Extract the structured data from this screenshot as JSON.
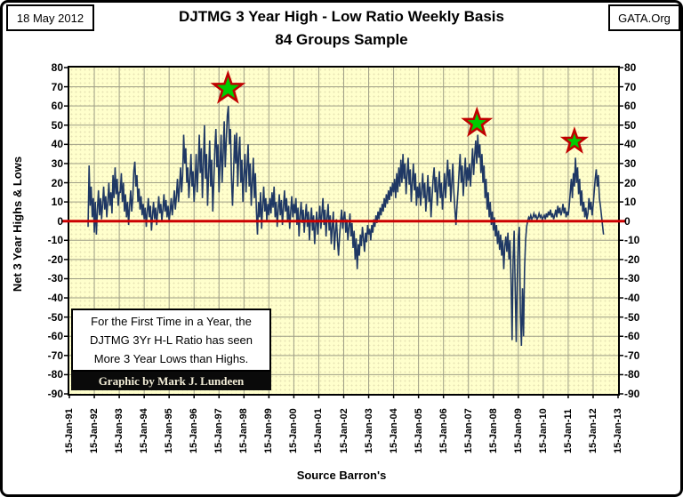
{
  "header": {
    "date": "18 May 2012",
    "org": "GATA.Org",
    "title_line1": "DJTMG 3 Year High - Low Ratio Weekly Basis",
    "title_line2": "84 Groups Sample"
  },
  "annotation": {
    "lines": [
      "For the First Time in a Year, the",
      "DJTMG 3Yr H-L Ratio has seen",
      "More 3 Year Lows than Highs."
    ]
  },
  "credit": "Graphic by Mark J. Lundeen",
  "source": "Source Barron's",
  "colors": {
    "plot_bg": "#FFFFCC",
    "grid": "#9e9e86",
    "series": "#1F3864",
    "zero_line": "#CC0000",
    "star_fill": "#00CC00",
    "star_stroke": "#C00000"
  },
  "chart_data": {
    "type": "line",
    "title": "DJTMG 3 Year High - Low Ratio Weekly Basis",
    "subtitle": "84 Groups Sample",
    "ylabel": "Net 3 Year Highs & Lows",
    "xlabel": "",
    "ylim": [
      -90,
      80
    ],
    "ytick_step": 10,
    "xlim": [
      1991,
      2013
    ],
    "grid": true,
    "legend": "none",
    "xtick_labels": [
      "15-Jan-91",
      "15-Jan-92",
      "15-Jan-93",
      "15-Jan-94",
      "15-Jan-95",
      "15-Jan-96",
      "15-Jan-97",
      "15-Jan-98",
      "15-Jan-99",
      "15-Jan-00",
      "15-Jan-01",
      "15-Jan-02",
      "15-Jan-03",
      "15-Jan-04",
      "15-Jan-05",
      "15-Jan-06",
      "15-Jan-07",
      "15-Jan-08",
      "15-Jan-09",
      "15-Jan-10",
      "15-Jan-11",
      "15-Jan-12",
      "15-Jan-13"
    ],
    "markers": [
      {
        "type": "star",
        "t": 1997.36,
        "value": 69,
        "size": 17
      },
      {
        "type": "star",
        "t": 2007.34,
        "value": 51,
        "size": 15
      },
      {
        "type": "star",
        "t": 2011.25,
        "value": 41.5,
        "size": 13
      }
    ],
    "series": [
      {
        "name": "Net 3 Year Highs & Lows (weekly)",
        "color": "#1F3864",
        "t0": 1991.75,
        "dt_years": 0.0416667,
        "values": [
          -3,
          29,
          8,
          18,
          2,
          12,
          -6,
          10,
          -7,
          6,
          16,
          3,
          12,
          1,
          9,
          18,
          6,
          13,
          2,
          10,
          20,
          8,
          15,
          4,
          24,
          12,
          28,
          14,
          22,
          8,
          15,
          15,
          25,
          10,
          20,
          5,
          14,
          2,
          10,
          -2,
          8,
          16,
          5,
          12,
          26,
          31,
          18,
          24,
          10,
          17,
          6,
          13,
          3,
          9,
          1,
          7,
          -3,
          5,
          12,
          2,
          8,
          -5,
          3,
          10,
          1,
          7,
          -2,
          5,
          13,
          4,
          9,
          0,
          6,
          14,
          5,
          11,
          2,
          8,
          0,
          5,
          12,
          3,
          9,
          16,
          6,
          13,
          22,
          10,
          18,
          28,
          15,
          24,
          45,
          30,
          38,
          20,
          28,
          12,
          22,
          35,
          18,
          26,
          10,
          20,
          35,
          15,
          28,
          45,
          25,
          38,
          12,
          30,
          50,
          22,
          35,
          8,
          25,
          42,
          18,
          32,
          5,
          20,
          38,
          48,
          28,
          40,
          15,
          30,
          45,
          20,
          35,
          52,
          28,
          42,
          55,
          60,
          40,
          48,
          22,
          8,
          25,
          45,
          30,
          46,
          18,
          35,
          44,
          20,
          32,
          10,
          24,
          35,
          15,
          28,
          40,
          18,
          30,
          8,
          20,
          33,
          12,
          25,
          5,
          -7,
          10,
          2,
          15,
          -4,
          8,
          18,
          5,
          12,
          0,
          9,
          3,
          12,
          4,
          15,
          7,
          18,
          2,
          10,
          -3,
          6,
          14,
          3,
          11,
          -2,
          7,
          16,
          5,
          12,
          0,
          8,
          -4,
          5,
          13,
          2,
          9,
          4,
          12,
          -2,
          7,
          -8,
          3,
          10,
          -1,
          6,
          -6,
          2,
          9,
          -3,
          5,
          -10,
          1,
          7,
          -5,
          3,
          -12,
          -2,
          5,
          -7,
          1,
          8,
          -4,
          4,
          12,
          -2,
          6,
          -8,
          2,
          9,
          -5,
          3,
          -12,
          -3,
          5,
          -15,
          -6,
          1,
          -10,
          -18,
          -8,
          0,
          6,
          -4,
          2,
          5,
          -6,
          1,
          -10,
          -3,
          4,
          -8,
          -1,
          -14,
          -5,
          -20,
          -9,
          -25,
          -12,
          -18,
          -7,
          -13,
          -3,
          -9,
          -16,
          -6,
          -11,
          -2,
          -7,
          -4,
          -10,
          -2,
          -6,
          1,
          -3,
          3,
          -1,
          5,
          1,
          7,
          3,
          9,
          5,
          12,
          7,
          14,
          9,
          16,
          11,
          18,
          13,
          20,
          15,
          22,
          12,
          25,
          15,
          28,
          18,
          32,
          20,
          35,
          22,
          30,
          14,
          24,
          33,
          19,
          27,
          10,
          20,
          30,
          16,
          25,
          8,
          18,
          12,
          20,
          8,
          16,
          25,
          12,
          20,
          5,
          14,
          24,
          10,
          18,
          2,
          12,
          22,
          28,
          15,
          23,
          8,
          17,
          26,
          12,
          20,
          6,
          15,
          25,
          12,
          22,
          32,
          18,
          27,
          10,
          20,
          30,
          15,
          6,
          -2,
          8,
          16,
          26,
          35,
          20,
          29,
          13,
          23,
          33,
          18,
          28,
          21,
          30,
          18,
          28,
          38,
          24,
          34,
          42,
          30,
          45,
          33,
          40,
          25,
          35,
          20,
          29,
          12,
          22,
          6,
          15,
          2,
          10,
          -2,
          5,
          -5,
          2,
          -8,
          -2,
          -12,
          -5,
          -15,
          -7,
          -18,
          -10,
          -25,
          -13,
          -8,
          -16,
          -6,
          -20,
          -10,
          -30,
          -62,
          -20,
          -5,
          -35,
          -63,
          -30,
          -8,
          -3,
          -48,
          -65,
          -35,
          -60,
          -25,
          -10,
          -3,
          0,
          2,
          1,
          3,
          1,
          2,
          4,
          2,
          3,
          1,
          2,
          4,
          2,
          3,
          1,
          2,
          3,
          1,
          4,
          2,
          5,
          3,
          6,
          2,
          4,
          1,
          3,
          6,
          2,
          8,
          4,
          7,
          3,
          5,
          9,
          4,
          7,
          2,
          5,
          3,
          8,
          15,
          22,
          12,
          25,
          18,
          33,
          20,
          28,
          14,
          22,
          8,
          16,
          5,
          10,
          2,
          7,
          1,
          4,
          12,
          6,
          10,
          3,
          8,
          15,
          22,
          27,
          18,
          24,
          12,
          8,
          3,
          -2,
          -7
        ]
      }
    ]
  }
}
